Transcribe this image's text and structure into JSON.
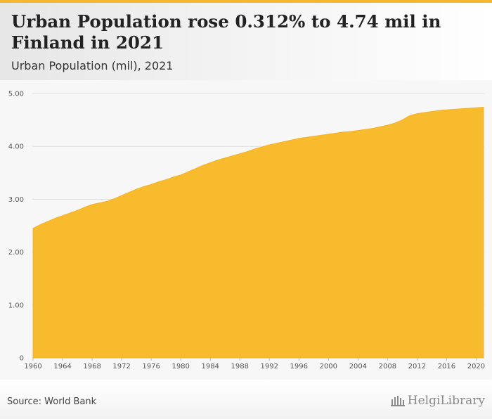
{
  "header": {
    "title": "Urban Population rose 0.312% to 4.74 mil in Finland in 2021",
    "subtitle": "Urban Population (mil), 2021"
  },
  "footer": {
    "source": "Source: World Bank",
    "logo_text": "HelgiLibrary"
  },
  "colors": {
    "accent": "#f6b72c",
    "area_fill": "#f9bb2e",
    "grid": "#dddddd"
  },
  "chart_data": {
    "type": "area",
    "title": "Urban Population rose 0.312% to 4.74 mil in Finland in 2021",
    "subtitle": "Urban Population (mil), 2021",
    "xlabel": "",
    "ylabel": "",
    "ylim": [
      0,
      5
    ],
    "y_ticks": [
      0,
      1,
      2,
      3,
      4,
      5
    ],
    "y_tick_labels": [
      "0",
      "1.00",
      "2.00",
      "3.00",
      "4.00",
      "5.00"
    ],
    "x_ticks": [
      1960,
      1964,
      1968,
      1972,
      1976,
      1980,
      1984,
      1988,
      1992,
      1996,
      2000,
      2004,
      2008,
      2012,
      2016,
      2020
    ],
    "x": [
      1960,
      1961,
      1962,
      1963,
      1964,
      1965,
      1966,
      1967,
      1968,
      1969,
      1970,
      1971,
      1972,
      1973,
      1974,
      1975,
      1976,
      1977,
      1978,
      1979,
      1980,
      1981,
      1982,
      1983,
      1984,
      1985,
      1986,
      1987,
      1988,
      1989,
      1990,
      1991,
      1992,
      1993,
      1994,
      1995,
      1996,
      1997,
      1998,
      1999,
      2000,
      2001,
      2002,
      2003,
      2004,
      2005,
      2006,
      2007,
      2008,
      2009,
      2010,
      2011,
      2012,
      2013,
      2014,
      2015,
      2016,
      2017,
      2018,
      2019,
      2020,
      2021
    ],
    "series": [
      {
        "name": "Urban Population (mil)",
        "values": [
          2.45,
          2.52,
          2.58,
          2.64,
          2.69,
          2.74,
          2.79,
          2.85,
          2.9,
          2.93,
          2.96,
          3.01,
          3.07,
          3.13,
          3.19,
          3.24,
          3.28,
          3.33,
          3.37,
          3.42,
          3.46,
          3.52,
          3.58,
          3.64,
          3.69,
          3.74,
          3.78,
          3.82,
          3.86,
          3.9,
          3.95,
          3.99,
          4.03,
          4.06,
          4.09,
          4.12,
          4.15,
          4.17,
          4.19,
          4.21,
          4.23,
          4.25,
          4.27,
          4.28,
          4.3,
          4.32,
          4.34,
          4.37,
          4.4,
          4.44,
          4.5,
          4.58,
          4.62,
          4.64,
          4.66,
          4.68,
          4.69,
          4.7,
          4.71,
          4.72,
          4.73,
          4.74
        ]
      }
    ]
  }
}
